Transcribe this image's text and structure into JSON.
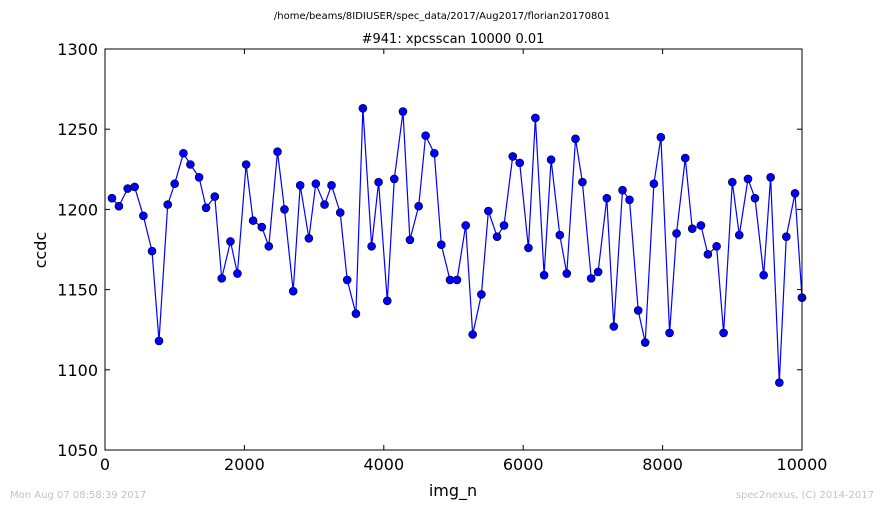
{
  "chart_data": {
    "type": "line",
    "suptitle": "/home/beams/8IDIUSER/spec_data/2017/Aug2017/florian20170801",
    "title": "#941: xpcsscan 10000 0.01",
    "xlabel": "img_n",
    "ylabel": "ccdc",
    "xlim": [
      0,
      10000
    ],
    "ylim": [
      1050,
      1300
    ],
    "xticks": [
      "0",
      "2000",
      "4000",
      "6000",
      "8000",
      "10000"
    ],
    "yticks": [
      "1050",
      "1100",
      "1150",
      "1200",
      "1250",
      "1300"
    ],
    "xtick_values": [
      0,
      2000,
      4000,
      6000,
      8000,
      10000
    ],
    "ytick_values": [
      1050,
      1100,
      1150,
      1200,
      1250,
      1300
    ],
    "line_color": "#0000ff",
    "marker_color": "#0000ff",
    "grid": false,
    "x": [
      100,
      200,
      325,
      425,
      550,
      675,
      775,
      900,
      1000,
      1125,
      1225,
      1350,
      1450,
      1575,
      1675,
      1800,
      1900,
      2025,
      2125,
      2250,
      2350,
      2475,
      2575,
      2700,
      2800,
      2925,
      3025,
      3150,
      3250,
      3375,
      3475,
      3600,
      3700,
      3825,
      3925,
      4050,
      4150,
      4275,
      4375,
      4500,
      4600,
      4725,
      4825,
      4950,
      5050,
      5175,
      5275,
      5400,
      5500,
      5625,
      5725,
      5850,
      5950,
      6075,
      6175,
      6300,
      6400,
      6525,
      6625,
      6750,
      6850,
      6975,
      7075,
      7200,
      7300,
      7425,
      7525,
      7650,
      7750,
      7875,
      7975,
      8100,
      8200,
      8325,
      8425,
      8550,
      8650,
      8775,
      8875,
      9000,
      9100,
      9225,
      9325,
      9450,
      9550,
      9675,
      9775,
      9900,
      10000,
      10000
    ],
    "y": [
      1207,
      1202,
      1213,
      1214,
      1196,
      1174,
      1118,
      1203,
      1216,
      1235,
      1228,
      1220,
      1201,
      1208,
      1157,
      1180,
      1160,
      1228,
      1193,
      1189,
      1177,
      1236,
      1200,
      1149,
      1215,
      1182,
      1216,
      1203,
      1215,
      1198,
      1156,
      1135,
      1263,
      1177,
      1217,
      1143,
      1219,
      1261,
      1181,
      1202,
      1246,
      1235,
      1178,
      1156,
      1156,
      1190,
      1122,
      1147,
      1199,
      1183,
      1190,
      1233,
      1229,
      1176,
      1257,
      1159,
      1231,
      1184,
      1160,
      1244,
      1217,
      1157,
      1161,
      1207,
      1127,
      1212,
      1206,
      1137,
      1117,
      1216,
      1245,
      1123,
      1185,
      1232,
      1188,
      1190,
      1172,
      1177,
      1123,
      1217,
      1184,
      1219,
      1207,
      1159,
      1220,
      1092,
      1183,
      1210,
      1145,
      1145
    ]
  },
  "footer": {
    "timestamp": "Mon Aug 07 08:58:39 2017",
    "credit": "spec2nexus, (C) 2014-2017"
  }
}
